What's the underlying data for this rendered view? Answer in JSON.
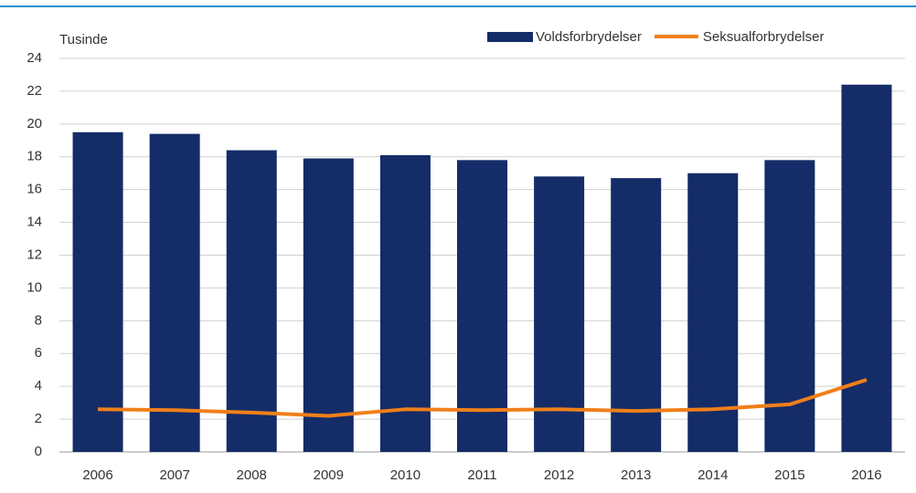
{
  "chart_data": {
    "type": "bar_line",
    "y_axis_label": "Tusinde",
    "categories": [
      "2006",
      "2007",
      "2008",
      "2009",
      "2010",
      "2011",
      "2012",
      "2013",
      "2014",
      "2015",
      "2016"
    ],
    "series": [
      {
        "name": "Voldsforbrydelser",
        "type": "bar",
        "color": "#142c67",
        "values": [
          19.5,
          19.4,
          18.4,
          17.9,
          18.1,
          17.8,
          16.8,
          16.7,
          17.0,
          17.8,
          22.4
        ]
      },
      {
        "name": "Seksualforbrydelser",
        "type": "line",
        "color": "#f07f1a",
        "values": [
          2.6,
          2.55,
          2.4,
          2.2,
          2.6,
          2.55,
          2.6,
          2.5,
          2.6,
          2.9,
          4.4
        ]
      }
    ],
    "ylim": [
      0,
      24
    ],
    "yticks": [
      0,
      2,
      4,
      6,
      8,
      10,
      12,
      14,
      16,
      18,
      20,
      22,
      24
    ],
    "grid": true
  }
}
